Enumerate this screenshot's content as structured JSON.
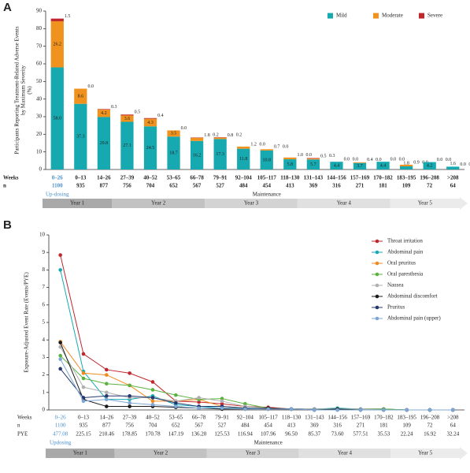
{
  "chart_data": [
    {
      "type": "bar",
      "stacked": true,
      "panel": "A",
      "ylabel": [
        "Participants Reporting Treatment-Related Adverse Events",
        "by Maximum Severity",
        "(%)"
      ],
      "categories": [
        "0–26",
        "0–13",
        "14–26",
        "27–39",
        "40–52",
        "53–65",
        "66–78",
        "79–91",
        "92–104",
        "105–117",
        "118–130",
        "131–143",
        "144–156",
        "157–169",
        "170–182",
        "183–195",
        "196–208",
        ">208"
      ],
      "row_labels": [
        "Weeks",
        "n"
      ],
      "n": [
        1100,
        935,
        877,
        756,
        704,
        652,
        567,
        527,
        484,
        454,
        413,
        369,
        316,
        271,
        181,
        109,
        72,
        64
      ],
      "updosing": "Up-dosing",
      "maintenance": "Maintenance",
      "year_bands": [
        "Year 1",
        "Year 2",
        "Year 3",
        "Year 4",
        "Year 5"
      ],
      "ylim": [
        0,
        90
      ],
      "yticks": [
        0,
        10,
        20,
        30,
        40,
        50,
        60,
        70,
        80,
        90
      ],
      "legend": "top-right",
      "series": [
        {
          "name": "Mild",
          "color": "#17a9b0",
          "values": [
            58.0,
            37.3,
            29.8,
            27.1,
            24.5,
            18.7,
            16.2,
            17.3,
            11.8,
            10.8,
            5.8,
            5.7,
            4.4,
            3.7,
            4.4,
            1.8,
            4.2,
            1.6
          ],
          "value_labels": [
            "58.0",
            "37.3",
            "29.8",
            "27.1",
            "24.5",
            "18.7",
            "16.2",
            "17.3",
            "11.8",
            "10.8",
            "5.8",
            "5.7",
            "4.4",
            "3.7",
            "4.4",
            "1.8",
            "4.2",
            "1.6"
          ]
        },
        {
          "name": "Moderate",
          "color": "#f0921e",
          "values": [
            26.2,
            8.6,
            4.2,
            3.6,
            4.3,
            3.5,
            1.8,
            0.8,
            1.2,
            0.7,
            1.0,
            0.5,
            0.0,
            0.4,
            0.0,
            0.9,
            0.0,
            0.0
          ],
          "value_labels": [
            "26.2",
            "8.6",
            "4.2",
            "3.6",
            "4.3",
            "3.5",
            "1.8",
            "0.8",
            "1.2",
            "0.7",
            "1.0",
            "0.5",
            "0.0",
            "0.4",
            "0.0",
            "0.9",
            "0.0",
            "0.0"
          ]
        },
        {
          "name": "Severe",
          "color": "#c0272d",
          "values": [
            1.5,
            0.0,
            0.3,
            0.5,
            0.4,
            0.0,
            0.2,
            0.2,
            0.0,
            0.0,
            0.0,
            0.3,
            0.0,
            0.0,
            0.0,
            0.0,
            0.0,
            0.0
          ],
          "value_labels": [
            "1.5",
            "0.0",
            "0.3",
            "0.5",
            "0.4",
            "0.0",
            "0.2",
            "0.2",
            "0.0",
            "0.0",
            "0.0",
            "0.3",
            "0.0",
            "0.0",
            "0.0",
            "0.0",
            "0.0",
            "0.0"
          ]
        }
      ]
    },
    {
      "type": "line",
      "panel": "B",
      "ylabel": [
        "Exposure-Adjusted Event Rate (Events/PYE)"
      ],
      "categories": [
        "0–26",
        "0–13",
        "14–26",
        "27–39",
        "40–52",
        "53–65",
        "66–78",
        "79–91",
        "92–104",
        "105–117",
        "118–130",
        "131–143",
        "144–156",
        "157–169",
        "170–182",
        "183–195",
        "196–208",
        ">208"
      ],
      "row_labels": [
        "Weeks",
        "n",
        "PYE"
      ],
      "n": [
        1100,
        935,
        877,
        756,
        704,
        652,
        567,
        527,
        484,
        454,
        413,
        369,
        316,
        271,
        181,
        109,
        72,
        64
      ],
      "pye": [
        "477.08",
        "225.15",
        "210.46",
        "178.85",
        "170.78",
        "147.19",
        "136.20",
        "125.53",
        "116.94",
        "107.96",
        "96.50",
        "85.37",
        "73.60",
        "577.51",
        "35.53",
        "22.24",
        "16.92",
        "32.24"
      ],
      "updosing": "Updosing",
      "maintenance": "Maintenance",
      "year_bands": [
        "Year 1",
        "Year 2",
        "Year 3",
        "Year 4",
        "Year 5"
      ],
      "ylim": [
        0,
        10
      ],
      "yticks": [
        0,
        1,
        2,
        3,
        4,
        5,
        6,
        7,
        8,
        9,
        10
      ],
      "legend": "right",
      "series": [
        {
          "name": "Throat irritation",
          "color": "#c0272d",
          "values": [
            8.85,
            3.2,
            2.3,
            2.1,
            1.6,
            0.5,
            0.45,
            0.35,
            0.2,
            0.15,
            0.05,
            0.05,
            0.05,
            0.05,
            0.05,
            0,
            0,
            0
          ]
        },
        {
          "name": "Abdominal pain",
          "color": "#17a9b5",
          "values": [
            8.0,
            2.2,
            0.6,
            0.6,
            0.8,
            0.3,
            0.2,
            0.1,
            0.1,
            0.1,
            0.05,
            0.05,
            0.1,
            0.05,
            0.05,
            0,
            0,
            0
          ]
        },
        {
          "name": "Oral pruritus",
          "color": "#f08a1f",
          "values": [
            3.9,
            2.1,
            2.0,
            1.4,
            0.5,
            0.5,
            0.6,
            0.2,
            0.1,
            0.05,
            0.05,
            0,
            0.05,
            0,
            0,
            0,
            0,
            0
          ]
        },
        {
          "name": "Oral paresthesia",
          "color": "#5bb33f",
          "values": [
            3.1,
            1.8,
            1.5,
            1.4,
            1.15,
            0.85,
            0.6,
            0.65,
            0.35,
            0.1,
            0.05,
            0.05,
            0.05,
            0.05,
            0.05,
            0,
            0,
            0
          ]
        },
        {
          "name": "Nausea",
          "color": "#b0b0b0",
          "values": [
            3.6,
            1.3,
            1.0,
            0.7,
            0.7,
            0.5,
            0.7,
            0.5,
            0.2,
            0.1,
            0.05,
            0.05,
            0.05,
            0.05,
            0,
            0,
            0,
            0
          ]
        },
        {
          "name": "Abdominal discomfort",
          "color": "#1a1a1a",
          "values": [
            3.85,
            0.6,
            0.2,
            0.2,
            0.2,
            0.15,
            0.1,
            0.05,
            0.05,
            0.1,
            0.05,
            0,
            0.05,
            0,
            0,
            0,
            0,
            0
          ]
        },
        {
          "name": "Pruritus",
          "color": "#24386e",
          "values": [
            2.35,
            0.7,
            0.8,
            0.8,
            0.7,
            0.4,
            0.2,
            0.2,
            0.1,
            0.05,
            0.05,
            0,
            0,
            0,
            0,
            0,
            0,
            0
          ]
        },
        {
          "name": "Abdominal pain (upper)",
          "color": "#7fa7d6",
          "values": [
            2.9,
            0.5,
            0.6,
            0.4,
            0.3,
            0.2,
            0.1,
            0.1,
            0.05,
            0.05,
            0.05,
            0,
            0,
            0,
            0,
            0,
            0,
            0
          ]
        }
      ]
    }
  ]
}
